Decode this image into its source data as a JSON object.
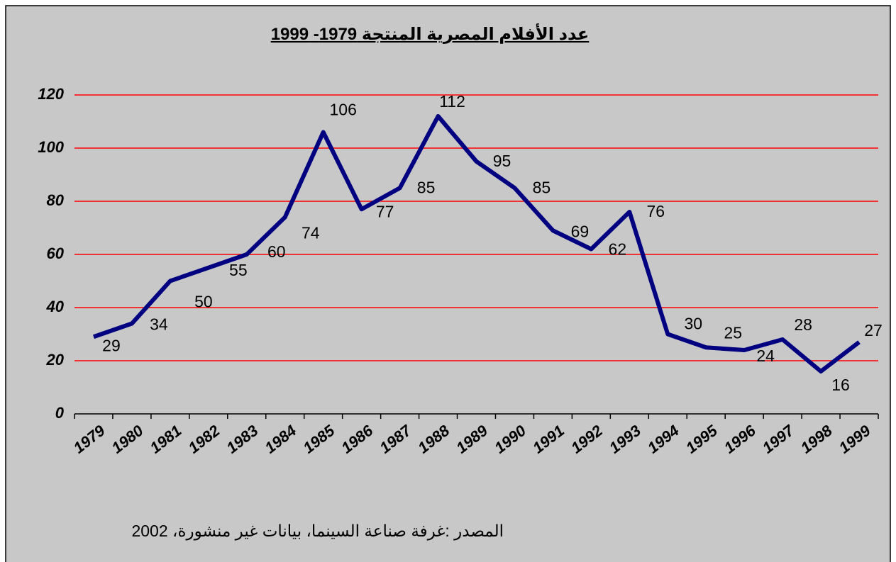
{
  "chart_data": {
    "type": "line",
    "title": "عدد الأفلام المصرية المنتجة  1979- 1999",
    "source": "المصدر :غرفة صناعة السينما، بيانات غير منشورة، 2002",
    "categories": [
      "1979",
      "1980",
      "1981",
      "1982",
      "1983",
      "1984",
      "1985",
      "1986",
      "1987",
      "1988",
      "1989",
      "1990",
      "1991",
      "1992",
      "1993",
      "1994",
      "1995",
      "1996",
      "1997",
      "1998",
      "1999"
    ],
    "series": [
      {
        "color": "#000080",
        "values": [
          29,
          34,
          50,
          55,
          60,
          74,
          106,
          77,
          85,
          112,
          95,
          85,
          69,
          62,
          76,
          30,
          25,
          24,
          28,
          16,
          27
        ]
      }
    ],
    "ylim": [
      0,
      120
    ],
    "yticks": [
      0,
      20,
      40,
      60,
      80,
      100,
      120
    ],
    "grid": true,
    "grid_color": "#ff0000"
  }
}
